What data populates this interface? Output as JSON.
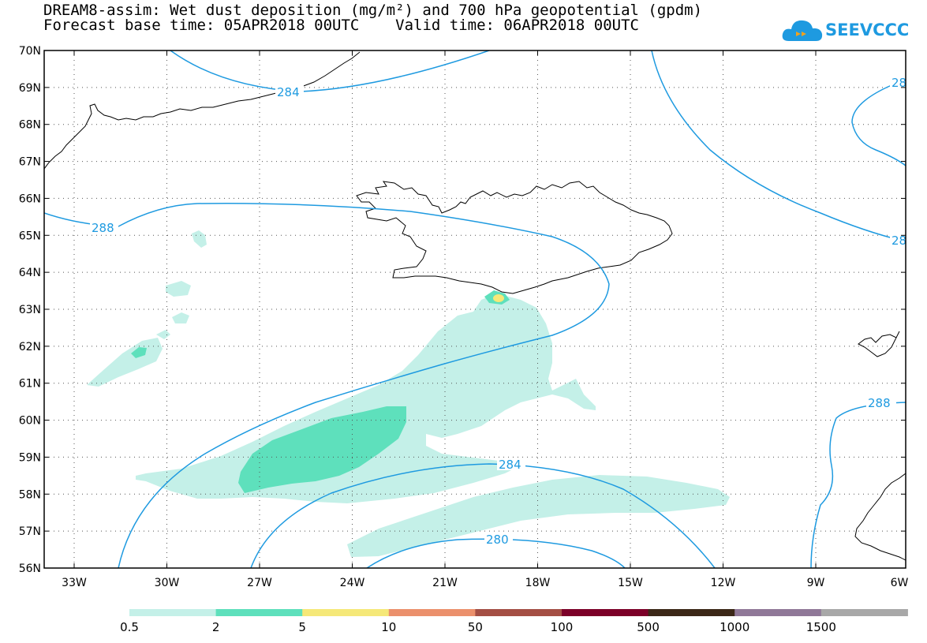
{
  "title": {
    "line1": "DREAM8-assim: Wet dust deposition (mg/m²) and 700 hPa geopotential (gpdm)",
    "line2_base_label": "Forecast base time: 05APR2018 00UTC",
    "line2_valid_label": "Valid time: 06APR2018 00UTC"
  },
  "logo": {
    "text": "SEEVCCC",
    "icon": "cloud-icon"
  },
  "map": {
    "lat_labels": [
      "70N",
      "69N",
      "68N",
      "67N",
      "66N",
      "65N",
      "64N",
      "63N",
      "62N",
      "61N",
      "60N",
      "59N",
      "58N",
      "57N",
      "56N"
    ],
    "lon_labels": [
      "33W",
      "30W",
      "27W",
      "24W",
      "21W",
      "18W",
      "15W",
      "12W",
      "9W",
      "6W"
    ],
    "contour_labels": [
      "284",
      "288",
      "284",
      "280",
      "288",
      "28",
      "28"
    ],
    "colors": {
      "contour": "#1e9ae0",
      "coast": "#000000",
      "dust_0_5": "#c4f0e8",
      "dust_2": "#5ee0bc",
      "dust_5": "#f5e878"
    }
  },
  "legend": {
    "labels": [
      "0.5",
      "2",
      "5",
      "10",
      "50",
      "100",
      "500",
      "1000",
      "1500"
    ],
    "colors": [
      "#c4f0e8",
      "#5ee0bc",
      "#f5e878",
      "#eb906c",
      "#a44e44",
      "#7c0028",
      "#3c2818",
      "#907898",
      "#a8a8a8"
    ]
  }
}
